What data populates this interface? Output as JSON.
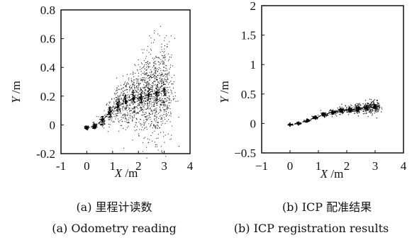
{
  "chart_data": [
    {
      "type": "scatter",
      "panel_label": "(a)",
      "caption_zh": "(a) 里程计读数",
      "caption_en": "(a) Odometry reading",
      "xlabel_var": "X",
      "xlabel_unit": " /m",
      "ylabel_var": "Y",
      "ylabel_unit": " /m",
      "xlim": [
        -1,
        4
      ],
      "ylim": [
        -0.2,
        0.8
      ],
      "xticks": [
        -1,
        0,
        1,
        2,
        3,
        4
      ],
      "xtick_labels": [
        "-1",
        "0",
        "1",
        "2",
        "3",
        "4"
      ],
      "yticks": [
        -0.2,
        0,
        0.2,
        0.4,
        0.6,
        0.8
      ],
      "ytick_labels": [
        "-0.2",
        "0",
        "0.2",
        "0.4",
        "0.6",
        "0.8"
      ],
      "grid": false,
      "series": [
        {
          "role": "trajectory",
          "style": "dashed-line",
          "x": [
            0.0,
            0.3,
            0.6,
            0.9,
            1.2,
            1.5,
            1.8,
            2.1,
            2.4,
            2.7,
            3.0
          ],
          "y": [
            -0.02,
            -0.01,
            0.03,
            0.09,
            0.13,
            0.16,
            0.18,
            0.19,
            0.21,
            0.22,
            0.24
          ]
        },
        {
          "role": "particles",
          "style": "dots",
          "x": [
            0.0,
            0.3,
            0.6,
            0.9,
            1.2,
            1.5,
            1.8,
            2.1,
            2.4,
            2.7,
            3.0
          ],
          "y": [
            -0.02,
            -0.01,
            0.03,
            0.09,
            0.13,
            0.16,
            0.18,
            0.19,
            0.21,
            0.22,
            0.24
          ],
          "spread_y": [
            0.004,
            0.012,
            0.025,
            0.04,
            0.06,
            0.08,
            0.1,
            0.12,
            0.14,
            0.16,
            0.18
          ]
        }
      ]
    },
    {
      "type": "scatter",
      "panel_label": "(b)",
      "caption_zh": "(b) ICP 配准结果",
      "caption_en": "(b) ICP registration results",
      "xlabel_var": "X",
      "xlabel_unit": " /m",
      "ylabel_var": "Y",
      "ylabel_unit": " /m",
      "xlim": [
        -1,
        4
      ],
      "ylim": [
        -0.5,
        2
      ],
      "xticks": [
        -1,
        0,
        1,
        2,
        3,
        4
      ],
      "xtick_labels": [
        "−1",
        "0",
        "1",
        "2",
        "3",
        "4"
      ],
      "yticks": [
        -0.5,
        0,
        0.5,
        1,
        1.5,
        2
      ],
      "ytick_labels": [
        "−0.5",
        "0",
        "0.5",
        "1",
        "1.5",
        "2"
      ],
      "grid": false,
      "series": [
        {
          "role": "trajectory",
          "style": "dashed-line",
          "x": [
            0.0,
            0.3,
            0.6,
            0.9,
            1.2,
            1.5,
            1.8,
            2.1,
            2.4,
            2.7,
            3.0
          ],
          "y": [
            -0.02,
            0.0,
            0.05,
            0.1,
            0.15,
            0.19,
            0.22,
            0.23,
            0.25,
            0.27,
            0.28
          ]
        },
        {
          "role": "particles",
          "style": "dots",
          "x": [
            0.0,
            0.3,
            0.6,
            0.9,
            1.2,
            1.5,
            1.8,
            2.1,
            2.4,
            2.7,
            3.0
          ],
          "y": [
            -0.02,
            0.0,
            0.05,
            0.1,
            0.15,
            0.19,
            0.22,
            0.23,
            0.25,
            0.27,
            0.28
          ],
          "spread_y": [
            0.003,
            0.006,
            0.01,
            0.015,
            0.02,
            0.025,
            0.03,
            0.035,
            0.04,
            0.05,
            0.06
          ]
        }
      ]
    }
  ],
  "colors": {
    "ink": "#111111",
    "dots": "#222222"
  }
}
